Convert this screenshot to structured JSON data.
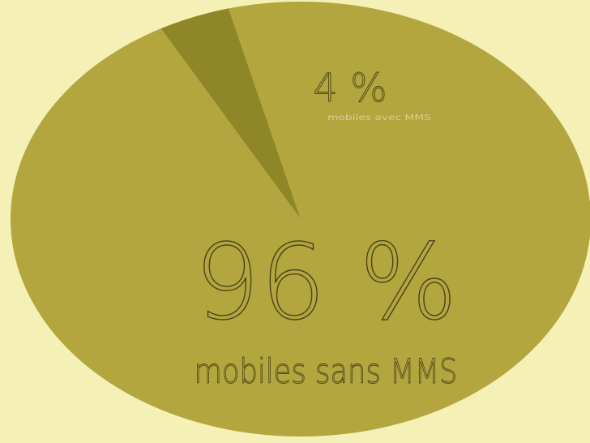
{
  "chart_data": {
    "type": "pie",
    "slices": [
      {
        "value": 96,
        "percent_label": "96 %",
        "label": "mobiles sans MMS",
        "color": "#b3a63f"
      },
      {
        "value": 4,
        "percent_label": "4 %",
        "label": "mobiles avec MMS",
        "color": "#8f8628"
      }
    ],
    "legend": "none",
    "grid": false
  },
  "colors": {
    "background": "#f5f1b6",
    "label_text": "#4a4418"
  }
}
